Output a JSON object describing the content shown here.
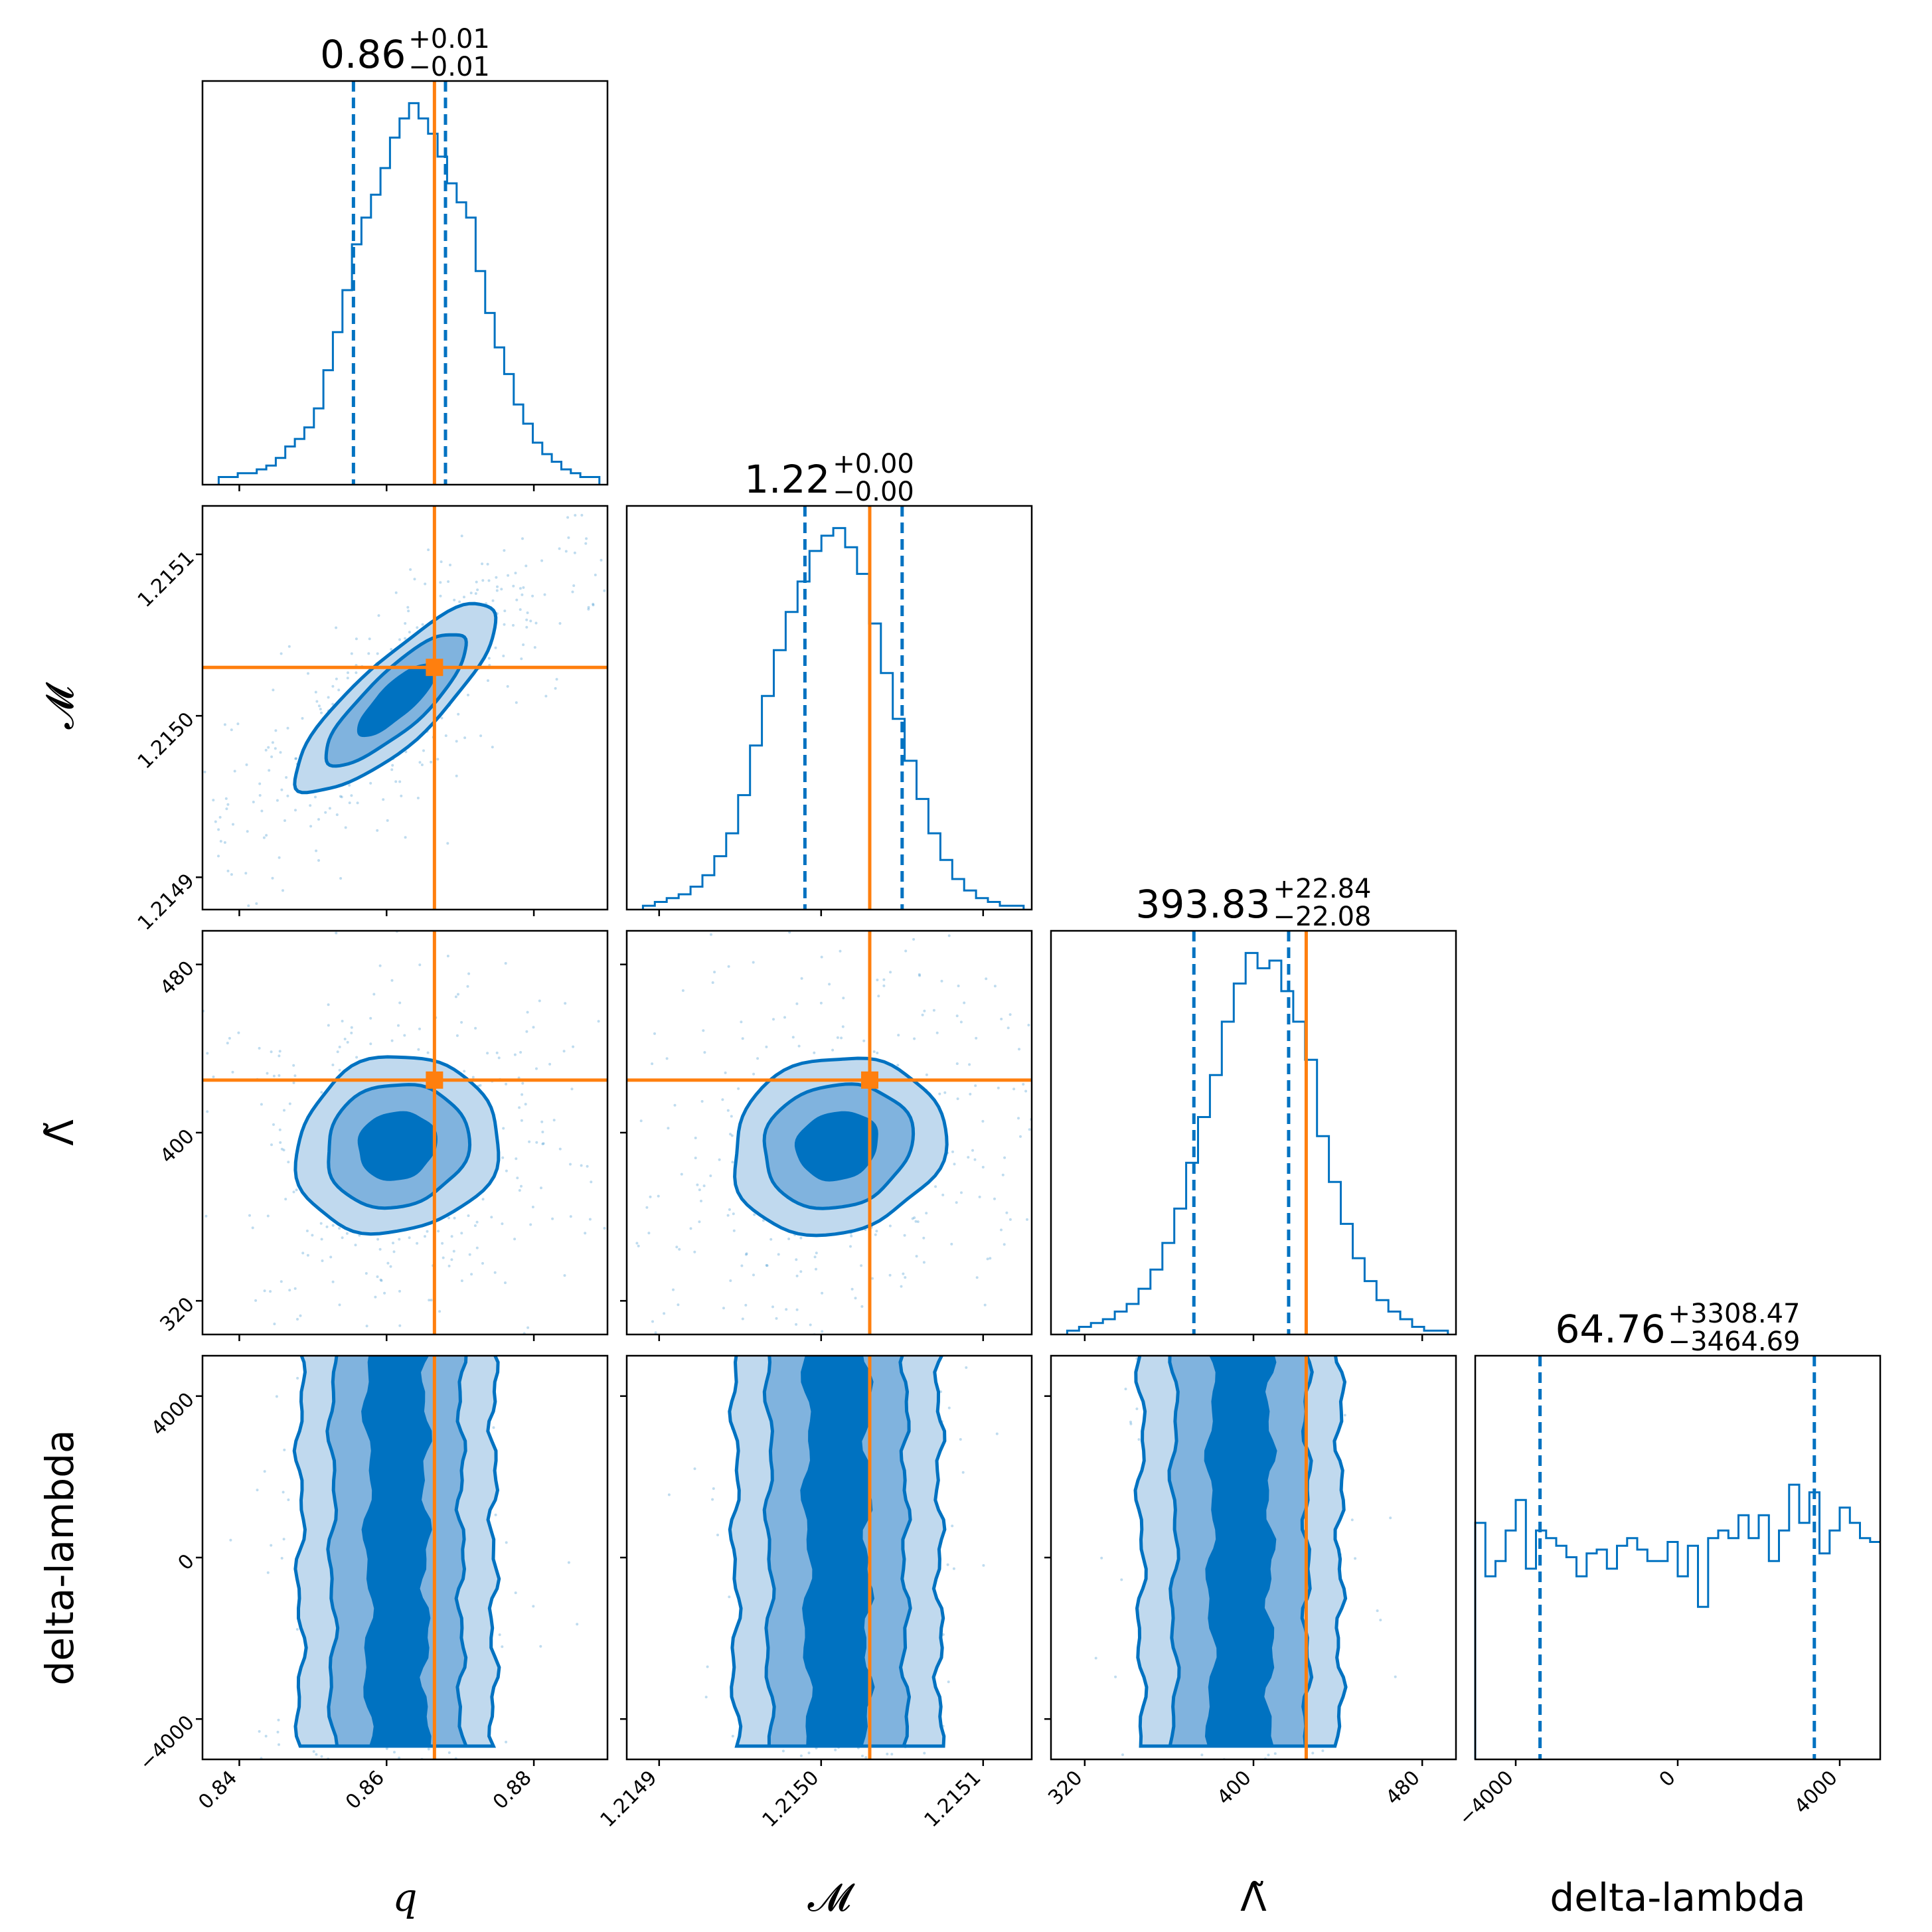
{
  "chart_data": {
    "type": "corner",
    "colors": {
      "posterior": "#0072C1",
      "fill_outer": "#C0D9EE",
      "fill_mid": "#80B3DE",
      "fill_inner": "#0072C1",
      "truth": "#FF7F0E",
      "frame": "#000000"
    },
    "parameters": [
      {
        "key": "q",
        "label": "q",
        "range": [
          0.835,
          0.89
        ],
        "ticks": [
          {
            "v": 0.84,
            "t": "0.84"
          },
          {
            "v": 0.86,
            "t": "0.86"
          },
          {
            "v": 0.88,
            "t": "0.88"
          }
        ],
        "median": 0.8614,
        "q16": 0.8555,
        "q84": 0.868,
        "truth": 0.8665,
        "title": {
          "main": "0.86",
          "plus": "+0.01",
          "minus": "−0.01"
        }
      },
      {
        "key": "chirp_mass",
        "label": "𝓜",
        "range": [
          1.21488,
          1.21513
        ],
        "ticks": [
          {
            "v": 1.2149,
            "t": "1.2149"
          },
          {
            "v": 1.215,
            "t": "1.2150"
          },
          {
            "v": 1.2151,
            "t": "1.2151"
          }
        ],
        "median": 1.21501,
        "q16": 1.21499,
        "q84": 1.21505,
        "truth": 1.21503,
        "title": {
          "main": "1.22",
          "plus": "+0.00",
          "minus": "−0.00"
        }
      },
      {
        "key": "lambda_tilde",
        "label": "Λ̃",
        "range": [
          304,
          496
        ],
        "ticks": [
          {
            "v": 320,
            "t": "320"
          },
          {
            "v": 400,
            "t": "400"
          },
          {
            "v": 480,
            "t": "480"
          }
        ],
        "median": 393.83,
        "q16": 371.75,
        "q84": 416.67,
        "truth": 425,
        "title": {
          "main": "393.83",
          "plus": "+22.84",
          "minus": "−22.08"
        }
      },
      {
        "key": "delta_lambda",
        "label": "delta-lambda",
        "range": [
          -5000,
          5000
        ],
        "ticks": [
          {
            "v": -4000,
            "t": "−4000"
          },
          {
            "v": 0,
            "t": "0"
          },
          {
            "v": 4000,
            "t": "4000"
          }
        ],
        "median": 64.76,
        "q16": -3399.93,
        "q84": 3373.23,
        "truth": null,
        "title": {
          "main": "64.76",
          "plus": "+3308.47",
          "minus": "−3464.69"
        }
      }
    ],
    "histograms": {
      "q": [
        0.02,
        0.02,
        0.03,
        0.03,
        0.04,
        0.05,
        0.07,
        0.1,
        0.12,
        0.15,
        0.2,
        0.3,
        0.4,
        0.51,
        0.63,
        0.7,
        0.76,
        0.83,
        0.91,
        0.96,
        1.0,
        0.96,
        0.92,
        0.86,
        0.79,
        0.74,
        0.7,
        0.56,
        0.45,
        0.36,
        0.29,
        0.21,
        0.16,
        0.11,
        0.08,
        0.06,
        0.04,
        0.03,
        0.02,
        0.02
      ],
      "chirp_mass": [
        0.01,
        0.02,
        0.03,
        0.04,
        0.06,
        0.09,
        0.14,
        0.2,
        0.3,
        0.43,
        0.56,
        0.68,
        0.78,
        0.86,
        0.94,
        0.98,
        1.0,
        0.95,
        0.88,
        0.75,
        0.62,
        0.5,
        0.39,
        0.29,
        0.2,
        0.13,
        0.08,
        0.05,
        0.03,
        0.02,
        0.01,
        0.01
      ],
      "lambda_tilde": [
        0.01,
        0.02,
        0.03,
        0.04,
        0.06,
        0.08,
        0.12,
        0.17,
        0.24,
        0.33,
        0.45,
        0.57,
        0.68,
        0.82,
        0.92,
        1.0,
        0.96,
        0.98,
        0.9,
        0.82,
        0.72,
        0.52,
        0.4,
        0.29,
        0.2,
        0.14,
        0.09,
        0.06,
        0.04,
        0.02,
        0.01,
        0.01
      ],
      "delta_lambda": [
        0.62,
        0.48,
        0.52,
        0.6,
        0.68,
        0.5,
        0.6,
        0.58,
        0.56,
        0.53,
        0.48,
        0.54,
        0.55,
        0.5,
        0.56,
        0.58,
        0.55,
        0.52,
        0.52,
        0.57,
        0.48,
        0.56,
        0.4,
        0.58,
        0.6,
        0.58,
        0.64,
        0.58,
        0.64,
        0.52,
        0.6,
        0.72,
        0.62,
        0.7,
        0.54,
        0.6,
        0.66,
        0.62,
        0.58,
        0.57
      ]
    }
  }
}
